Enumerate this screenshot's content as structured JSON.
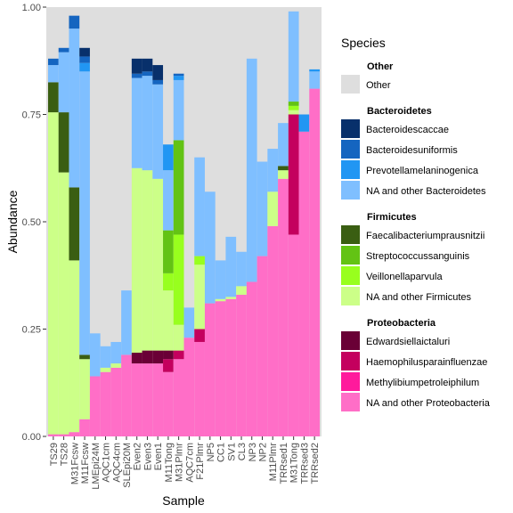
{
  "chart_data": {
    "type": "bar",
    "stacked": true,
    "xlabel": "Sample",
    "ylabel": "Abundance",
    "ylim": [
      0,
      1
    ],
    "yticks": [
      "0.00",
      "0.25",
      "0.50",
      "0.75",
      "1.00"
    ],
    "ytick_values": [
      0,
      0.25,
      0.5,
      0.75,
      1.0
    ],
    "grid": "none (grey panel background)",
    "panel_color": "#dedede",
    "categories": [
      "TS29",
      "TS28",
      "M31Fcsw",
      "M11Fcsw",
      "LMEpi24M",
      "AQC1cm",
      "AQC4cm",
      "SLEpi20M",
      "Even2",
      "Even3",
      "Even1",
      "M11Tong",
      "M31Plmr",
      "AQC7cm",
      "F21Plmr",
      "NP5",
      "CC1",
      "SV1",
      "CL3",
      "NP3",
      "NP2",
      "M11Plmr",
      "TRRsed1",
      "M31Tong",
      "TRRsed3",
      "TRRsed2"
    ],
    "legend": {
      "title": "Species",
      "placement": "right",
      "groups": [
        {
          "name": "Other",
          "entries": [
            {
              "label": "Other",
              "color": "#dedede"
            }
          ]
        },
        {
          "name": "Bacteroidetes",
          "entries": [
            {
              "label": "Bacteroidescaccae",
              "color": "#08306b"
            },
            {
              "label": "Bacteroidesuniformis",
              "color": "#1565c0"
            },
            {
              "label": "Prevotellamelaninogenica",
              "color": "#2196f3"
            },
            {
              "label": "NA and other Bacteroidetes",
              "color": "#7fbfff"
            }
          ]
        },
        {
          "name": "Firmicutes",
          "entries": [
            {
              "label": "Faecalibacteriumprausnitzii",
              "color": "#3a5e12"
            },
            {
              "label": "Streptococcussanguinis",
              "color": "#63c314"
            },
            {
              "label": "Veillonellaparvula",
              "color": "#98ff1e"
            },
            {
              "label": "NA and other Firmicutes",
              "color": "#ccff88"
            }
          ]
        },
        {
          "name": "Proteobacteria",
          "entries": [
            {
              "label": "Edwardsiellaictaluri",
              "color": "#6a0036"
            },
            {
              "label": "Haemophilusparainfluenzae",
              "color": "#c4005e"
            },
            {
              "label": "Methylibiumpetroleiphilum",
              "color": "#ff1a9c"
            },
            {
              "label": "NA and other Proteobacteria",
              "color": "#ff6ec7"
            }
          ]
        }
      ]
    },
    "series": [
      {
        "name": "NA and other Proteobacteria",
        "values": [
          0.005,
          0.005,
          0.01,
          0.04,
          0.14,
          0.15,
          0.16,
          0.19,
          0.17,
          0.17,
          0.17,
          0.15,
          0.18,
          0.23,
          0.22,
          0.31,
          0.315,
          0.32,
          0.33,
          0.36,
          0.42,
          0.49,
          0.6,
          0.47,
          0.71,
          0.81
        ]
      },
      {
        "name": "Methylibiumpetroleiphilum",
        "values": [
          0,
          0,
          0,
          0,
          0,
          0,
          0,
          0,
          0,
          0,
          0,
          0,
          0,
          0,
          0,
          0,
          0,
          0,
          0,
          0,
          0,
          0,
          0,
          0,
          0,
          0
        ]
      },
      {
        "name": "Haemophilusparainfluenzae",
        "values": [
          0,
          0,
          0,
          0,
          0,
          0,
          0,
          0,
          0,
          0,
          0,
          0.03,
          0.02,
          0,
          0.03,
          0,
          0,
          0,
          0,
          0,
          0,
          0,
          0,
          0.28,
          0,
          0
        ]
      },
      {
        "name": "Edwardsiellaictaluri",
        "values": [
          0,
          0,
          0,
          0,
          0,
          0,
          0,
          0,
          0.025,
          0.03,
          0.03,
          0.02,
          0,
          0,
          0,
          0,
          0,
          0,
          0,
          0,
          0,
          0,
          0,
          0,
          0,
          0
        ]
      },
      {
        "name": "NA and other Firmicutes",
        "values": [
          0.75,
          0.61,
          0.4,
          0.14,
          0,
          0.01,
          0.01,
          0,
          0.43,
          0.42,
          0.4,
          0.14,
          0.06,
          0,
          0.15,
          0,
          0.005,
          0.005,
          0.02,
          0,
          0,
          0.08,
          0.02,
          0.01,
          0,
          0
        ]
      },
      {
        "name": "Veillonellaparvula",
        "values": [
          0,
          0,
          0,
          0,
          0,
          0,
          0,
          0,
          0,
          0,
          0,
          0.04,
          0.21,
          0,
          0.02,
          0,
          0,
          0,
          0,
          0,
          0,
          0,
          0,
          0.01,
          0,
          0
        ]
      },
      {
        "name": "Streptococcussanguinis",
        "values": [
          0,
          0,
          0,
          0,
          0,
          0,
          0,
          0,
          0,
          0,
          0,
          0.1,
          0.22,
          0,
          0,
          0,
          0,
          0,
          0,
          0,
          0,
          0,
          0,
          0.01,
          0,
          0
        ]
      },
      {
        "name": "Faecalibacteriumprausnitzii",
        "values": [
          0.07,
          0.14,
          0.17,
          0.01,
          0,
          0,
          0,
          0,
          0,
          0,
          0,
          0,
          0,
          0,
          0,
          0,
          0,
          0,
          0,
          0,
          0,
          0,
          0.01,
          0,
          0,
          0
        ]
      },
      {
        "name": "NA and other Bacteroidetes",
        "values": [
          0.04,
          0.14,
          0.37,
          0.66,
          0.1,
          0.05,
          0.05,
          0.15,
          0.21,
          0.22,
          0.22,
          0.14,
          0.14,
          0.07,
          0.23,
          0.26,
          0.09,
          0.14,
          0.08,
          0.52,
          0.22,
          0.1,
          0.1,
          0.21,
          0,
          0.04
        ]
      },
      {
        "name": "Prevotellamelaninogenica",
        "values": [
          0,
          0,
          0,
          0.02,
          0,
          0,
          0,
          0,
          0,
          0,
          0,
          0.06,
          0.01,
          0,
          0,
          0,
          0,
          0,
          0,
          0,
          0,
          0,
          0,
          0,
          0.04,
          0.005
        ]
      },
      {
        "name": "Bacteroidesuniformis",
        "values": [
          0.015,
          0.01,
          0.03,
          0.015,
          0,
          0,
          0,
          0,
          0.01,
          0.01,
          0.01,
          0,
          0.005,
          0,
          0,
          0,
          0,
          0,
          0,
          0,
          0,
          0,
          0,
          0,
          0,
          0
        ]
      },
      {
        "name": "Bacteroidescaccae",
        "values": [
          0,
          0,
          0,
          0.02,
          0,
          0,
          0,
          0,
          0.035,
          0.03,
          0.035,
          0,
          0,
          0,
          0,
          0,
          0,
          0,
          0,
          0,
          0,
          0,
          0,
          0,
          0,
          0
        ]
      }
    ]
  }
}
